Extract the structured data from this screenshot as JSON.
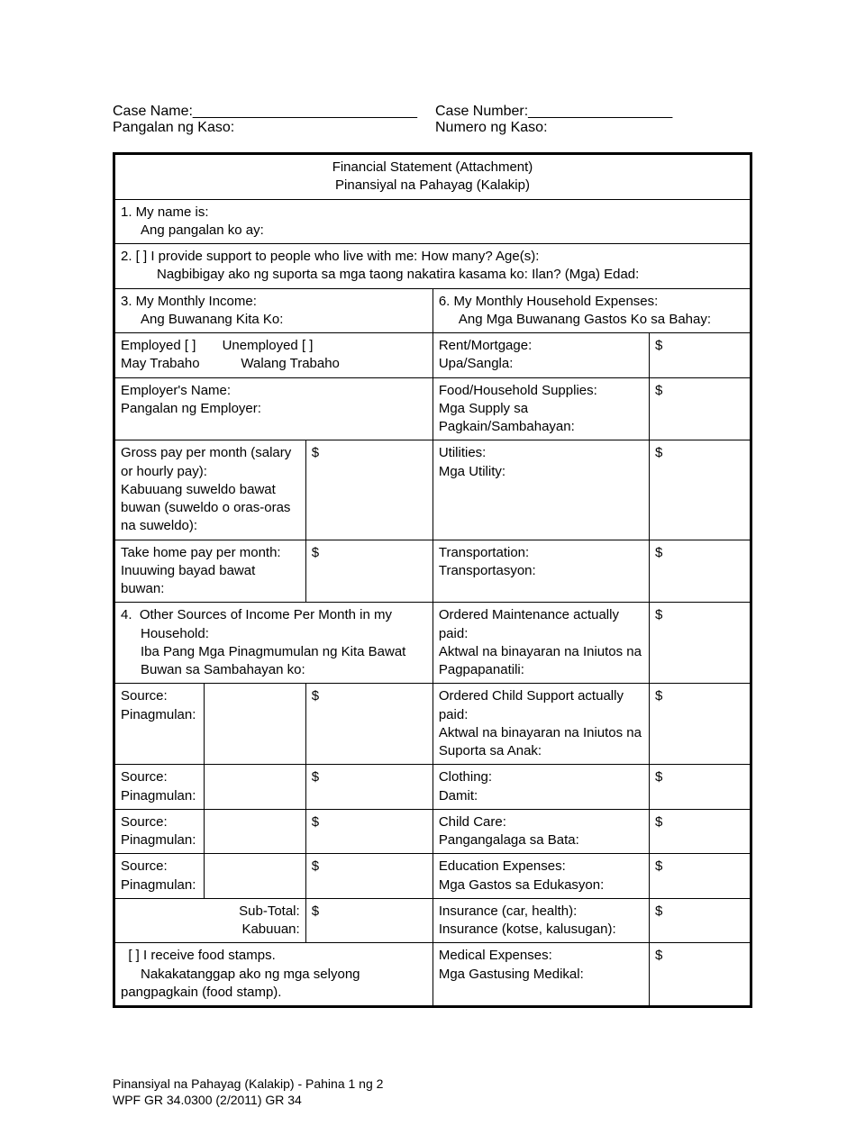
{
  "header": {
    "case_name_en": "Case Name:",
    "case_name_line": "____________________________",
    "case_name_tl": "Pangalan ng Kaso:",
    "case_number_en": "Case Number:",
    "case_number_line": "__________________",
    "case_number_tl": "Numero ng Kaso:"
  },
  "title": {
    "en": "Financial Statement (Attachment)",
    "tl": "Pinansiyal na Pahayag (Kalakip)"
  },
  "q1": {
    "en": "1.  My name is:",
    "tl": "Ang pangalan ko ay:"
  },
  "q2": {
    "line1": "2.  [  ] I provide support to people who live with me:  How many?           Age(s):",
    "line2": "Nagbibigay ako ng suporta sa mga taong nakatira kasama ko:  Ilan?    (Mga) Edad:"
  },
  "q3": {
    "en": "3.  My Monthly Income:",
    "tl": "Ang Buwanang Kita Ko:"
  },
  "q6": {
    "en": "6.  My Monthly Household Expenses:",
    "tl": "Ang Mga Buwanang Gastos Ko sa Bahay:"
  },
  "employment": {
    "employed_en": "Employed [  ]",
    "unemployed_en": "Unemployed [  ]",
    "employed_tl": "May Trabaho",
    "unemployed_tl": "Walang Trabaho"
  },
  "employer": {
    "en": "Employer's Name:",
    "tl": "Pangalan ng Employer:"
  },
  "gross": {
    "en": "Gross pay per month (salary or hourly pay):",
    "tl": "Kabuuang suweldo bawat buwan (suweldo o oras-oras na suweldo):"
  },
  "takehome": {
    "en": "Take home pay per month:",
    "tl": "Inuuwing bayad bawat buwan:"
  },
  "q4": {
    "en": "4.  Other Sources of Income Per Month in my Household:",
    "tl": "Iba Pang Mga Pinagmumulan ng Kita Bawat Buwan sa Sambahayan ko:"
  },
  "source": {
    "en": "Source:",
    "tl": "Pinagmulan:"
  },
  "subtotal": {
    "en": "Sub-Total:",
    "tl": "Kabuuan:"
  },
  "foodstamps": {
    "en": "[ ] I receive food stamps.",
    "tl": "Nakakatanggap ako ng mga selyong pangpagkain (food stamp)."
  },
  "expenses": {
    "rent_en": "Rent/Mortgage:",
    "rent_tl": "Upa/Sangla:",
    "food_en": "Food/Household Supplies:",
    "food_tl": "Mga Supply sa Pagkain/Sambahayan:",
    "util_en": "Utilities:",
    "util_tl": "Mga Utility:",
    "trans_en": "Transportation:",
    "trans_tl": "Transportasyon:",
    "maint_en": "Ordered Maintenance actually paid:",
    "maint_tl": "Aktwal na binayaran na Iniutos na Pagpapanatili:",
    "child_en": "Ordered Child Support actually paid:",
    "child_tl": "Aktwal na binayaran na Iniutos na Suporta sa Anak:",
    "cloth_en": "Clothing:",
    "cloth_tl": "Damit:",
    "care_en": "Child Care:",
    "care_tl": "Pangangalaga sa Bata:",
    "edu_en": "Education Expenses:",
    "edu_tl": "Mga Gastos sa Edukasyon:",
    "ins_en": "Insurance (car, health):",
    "ins_tl": "Insurance (kotse, kalusugan):",
    "med_en": "Medical Expenses:",
    "med_tl": "Mga Gastusing Medikal:"
  },
  "dollar": "$",
  "footer": {
    "line1": "Pinansiyal na Pahayag (Kalakip) - Pahina 1 ng 2",
    "line2": "WPF GR 34.0300 (2/2011) GR 34"
  }
}
